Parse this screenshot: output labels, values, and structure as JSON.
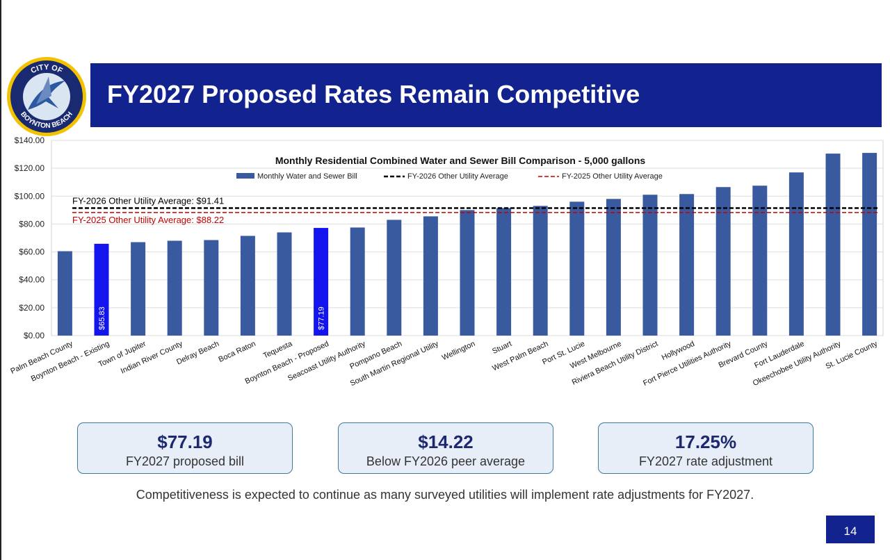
{
  "slide": {
    "title": "FY2027 Proposed Rates Remain Competitive",
    "logo": {
      "top_text": "CITY OF",
      "bottom_text": "BOYNTON BEACH",
      "icon": "sailfish-seal-icon"
    },
    "page_number": "14",
    "footnote": "Competitiveness is expected to continue as many surveyed utilities will implement rate adjustments for FY2027."
  },
  "stats": [
    {
      "value": "$77.19",
      "label": "FY2027 proposed bill"
    },
    {
      "value": "$14.22",
      "label": "Below FY2026 peer average"
    },
    {
      "value": "17.25%",
      "label": "FY2027 rate adjustment"
    }
  ],
  "chart_data": {
    "type": "bar",
    "title": "Monthly Residential Combined Water and Sewer Bill Comparison - 5,000 gallons",
    "categories": [
      "Palm Beach County",
      "Boynton Beach - Existing",
      "Town of Jupiter",
      "Indian River County",
      "Delray Beach",
      "Boca Raton",
      "Tequesta",
      "Boynton Beach - Proposed",
      "Seacoast Utility Authority",
      "Pompano Beach",
      "South Martin Regional Utility",
      "Wellington",
      "Stuart",
      "West Palm Beach",
      "Port St. Lucie",
      "West Melbourne",
      "Riviera Beach Utility District",
      "Hollywood",
      "Fort Pierce Utilities Authority",
      "Brevard County",
      "Fort Lauderdale",
      "Okeechobee Utility Authority",
      "St. Lucie County"
    ],
    "series": [
      {
        "name": "Monthly Water and Sewer Bill",
        "values": [
          60.5,
          65.83,
          67,
          68,
          68.5,
          71.5,
          74,
          77.19,
          77.5,
          83,
          85.5,
          90,
          91.5,
          93,
          96,
          98,
          101,
          101.5,
          106.5,
          107.5,
          117,
          130.5,
          131
        ]
      }
    ],
    "highlight_indices": [
      1,
      7
    ],
    "data_labels": [
      {
        "index": 1,
        "text": "$65.83"
      },
      {
        "index": 7,
        "text": "$77.19"
      }
    ],
    "reference_lines": [
      {
        "name": "FY-2026  Other Utility Average",
        "value": 91.41,
        "label": "FY-2026 Other Utility Average: $91.41",
        "color": "#000000"
      },
      {
        "name": "FY-2025  Other Utility Average",
        "value": 88.22,
        "label": "FY-2025 Other Utility Average: $88.22",
        "color": "#c00000"
      }
    ],
    "y_ticks": [
      "$0.00",
      "$20.00",
      "$40.00",
      "$60.00",
      "$80.00",
      "$100.00",
      "$120.00",
      "$140.00"
    ],
    "ylim": [
      0,
      140
    ],
    "grid": true,
    "legend_position": "top",
    "colors": {
      "bar": "#3a5aa0",
      "highlight": "#1414ee",
      "fy2026_line": "#000000",
      "fy2025_line": "#c00000"
    }
  }
}
